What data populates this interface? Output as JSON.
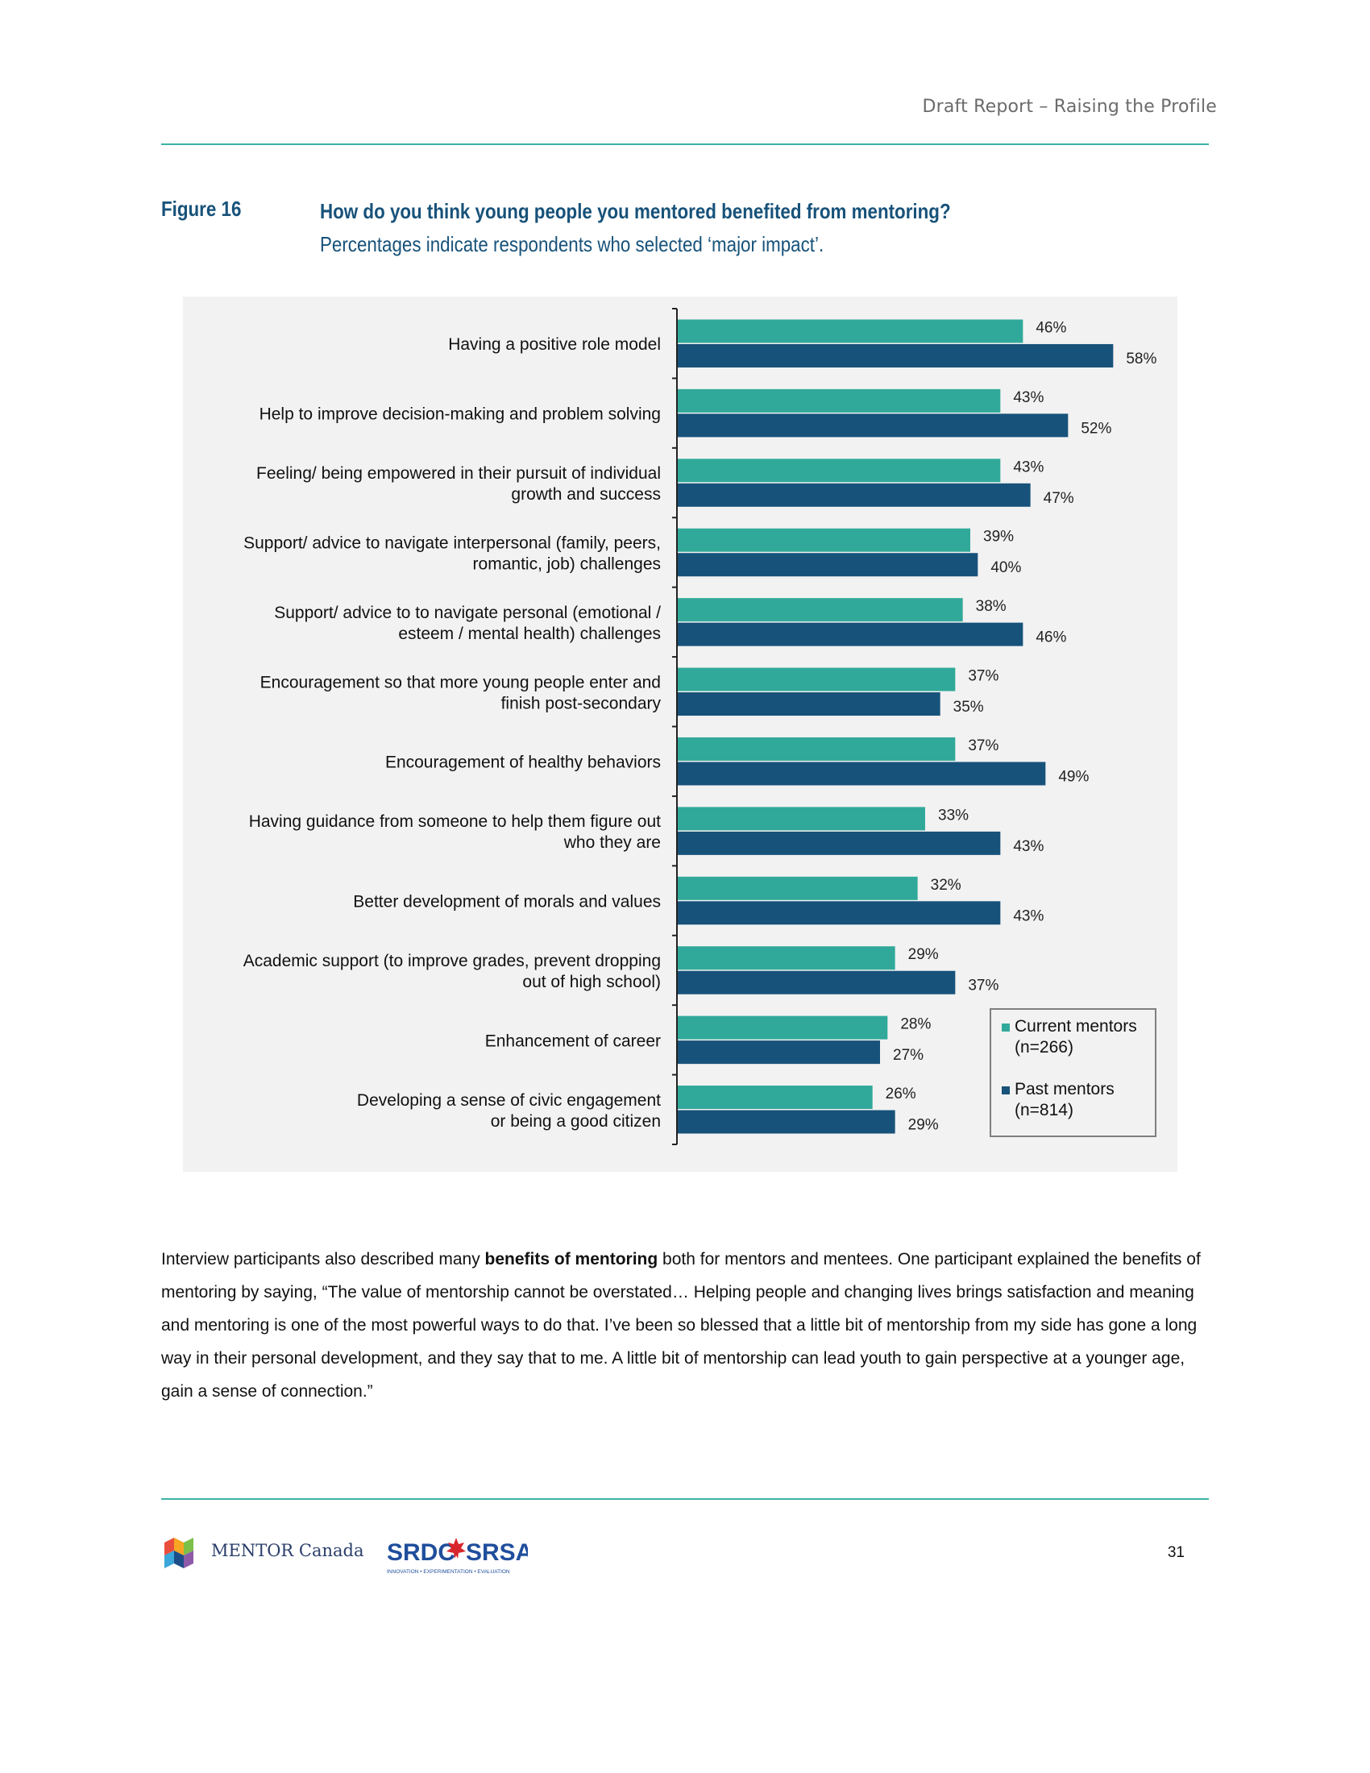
{
  "header": {
    "title": "Draft Report – Raising the Profile"
  },
  "figure": {
    "label": "Figure 16",
    "question": "How do you think young people you mentored benefited from mentoring?",
    "note": " Percentages indicate respondents who selected ‘major impact’."
  },
  "chart_data": {
    "type": "bar",
    "orientation": "horizontal",
    "categories": [
      [
        "Having a positive role model"
      ],
      [
        "Help to improve decision-making and problem solving"
      ],
      [
        "Feeling/ being empowered in their pursuit of individual",
        "growth and success"
      ],
      [
        "Support/ advice to navigate interpersonal (family, peers,",
        "romantic, job) challenges"
      ],
      [
        "Support/ advice to to navigate personal (emotional /",
        "esteem / mental health) challenges"
      ],
      [
        "Encouragement so that more young people enter and",
        "finish post-secondary"
      ],
      [
        "Encouragement of healthy behaviors"
      ],
      [
        "Having guidance from someone to help them figure out",
        "who they are"
      ],
      [
        "Better development of morals and values"
      ],
      [
        "Academic support (to improve grades, prevent dropping",
        "out of high school)"
      ],
      [
        "Enhancement of career"
      ],
      [
        "Developing a sense of civic engagement",
        "or being a good citizen"
      ]
    ],
    "series": [
      {
        "name": "Current mentors (n=266)",
        "legend_lines": [
          "Current mentors",
          "(n=266)"
        ],
        "color": "#31a99a",
        "values": [
          46,
          43,
          43,
          39,
          38,
          37,
          37,
          33,
          32,
          29,
          28,
          26
        ]
      },
      {
        "name": "Past mentors (n=814)",
        "legend_lines": [
          "Past mentors",
          "(n=814)"
        ],
        "color": "#17527a",
        "values": [
          58,
          52,
          47,
          40,
          46,
          35,
          49,
          43,
          43,
          37,
          27,
          29
        ]
      }
    ],
    "value_suffix": "%",
    "xlim": [
      0,
      60
    ],
    "legend_position": "bottom-right",
    "background": "#f2f2f2"
  },
  "body": {
    "before": "Interview participants also described many ",
    "bold": "benefits of mentoring",
    "after": " both for mentors and mentees. One participant explained the benefits of mentoring by saying, “The value of mentorship cannot be overstated… Helping people and changing lives brings satisfaction and meaning and mentoring is one of the most powerful ways to do that. I’ve been so blessed that a little bit of mentorship from my side has gone a long way in their personal development, and they say that to me. A little bit of mentorship can lead youth to gain perspective at a younger age, gain a sense of connection.”"
  },
  "footer": {
    "mentor_logo_text": "MENTOR Canada",
    "srdc_logo_text": "SRDC SRSA",
    "srdc_tagline": "INNOVATION • EXPERIMENTATION • EVALUATION",
    "page_number": "31"
  }
}
